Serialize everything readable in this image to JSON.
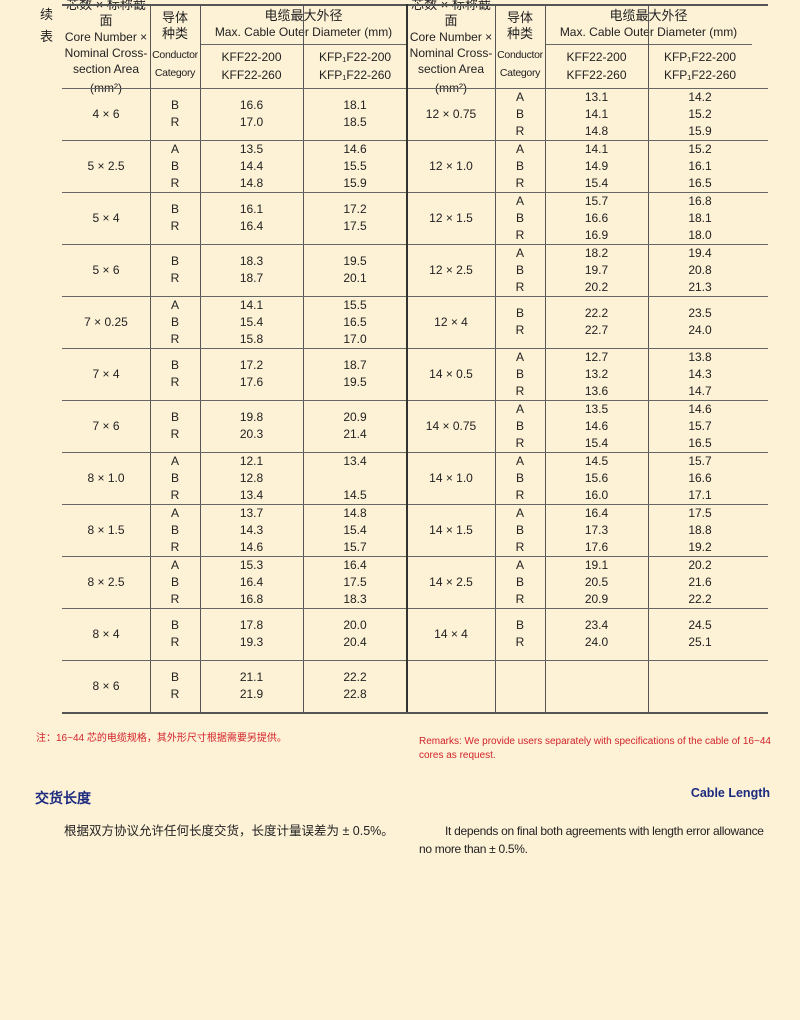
{
  "continued_label": "续表",
  "header": {
    "size_zh": "芯数 × 标称截面",
    "size_en_1": "Core Number ×",
    "size_en_2": "Nominal Cross-",
    "size_en_3": "section Area",
    "size_unit": "(mm²)",
    "cat_zh": "导体种类",
    "cat_en_1": "Conductor",
    "cat_en_2": "Category",
    "diam_zh": "电缆最大外径",
    "diam_en": "Max. Cable Outer Diameter (mm)",
    "kff_1": "KFF22-200",
    "kff_2": "KFF22-260",
    "kfp_1": "KFP₁F22-200",
    "kfp_2": "KFP₁F22-260"
  },
  "left_rows": [
    {
      "size": "4 × 6",
      "cats": [
        "B",
        "R"
      ],
      "kff": [
        "16.6",
        "17.0"
      ],
      "kfp": [
        "18.1",
        "18.5"
      ]
    },
    {
      "size": "5 × 2.5",
      "cats": [
        "A",
        "B",
        "R"
      ],
      "kff": [
        "13.5",
        "14.4",
        "14.8"
      ],
      "kfp": [
        "14.6",
        "15.5",
        "15.9"
      ]
    },
    {
      "size": "5 × 4",
      "cats": [
        "B",
        "R"
      ],
      "kff": [
        "16.1",
        "16.4"
      ],
      "kfp": [
        "17.2",
        "17.5"
      ]
    },
    {
      "size": "5 × 6",
      "cats": [
        "B",
        "R"
      ],
      "kff": [
        "18.3",
        "18.7"
      ],
      "kfp": [
        "19.5",
        "20.1"
      ]
    },
    {
      "size": "7 × 0.25",
      "cats": [
        "A",
        "B",
        "R"
      ],
      "kff": [
        "14.1",
        "15.4",
        "15.8"
      ],
      "kfp": [
        "15.5",
        "16.5",
        "17.0"
      ]
    },
    {
      "size": "7 × 4",
      "cats": [
        "B",
        "R"
      ],
      "kff": [
        "17.2",
        "17.6"
      ],
      "kfp": [
        "18.7",
        "19.5"
      ]
    },
    {
      "size": "7 × 6",
      "cats": [
        "B",
        "R"
      ],
      "kff": [
        "19.8",
        "20.3"
      ],
      "kfp": [
        "20.9",
        "21.4"
      ]
    },
    {
      "size": "8 × 1.0",
      "cats": [
        "A",
        "B",
        "R"
      ],
      "kff": [
        "12.1",
        "12.8",
        "13.4"
      ],
      "kfp": [
        "13.4",
        "",
        "14.5"
      ]
    },
    {
      "size": "8 × 1.5",
      "cats": [
        "A",
        "B",
        "R"
      ],
      "kff": [
        "13.7",
        "14.3",
        "14.6"
      ],
      "kfp": [
        "14.8",
        "15.4",
        "15.7"
      ]
    },
    {
      "size": "8 × 2.5",
      "cats": [
        "A",
        "B",
        "R"
      ],
      "kff": [
        "15.3",
        "16.4",
        "16.8"
      ],
      "kfp": [
        "16.4",
        "17.5",
        "18.3"
      ]
    },
    {
      "size": "8 × 4",
      "cats": [
        "B",
        "R"
      ],
      "kff": [
        "17.8",
        "19.3"
      ],
      "kfp": [
        "20.0",
        "20.4"
      ]
    },
    {
      "size": "8 × 6",
      "cats": [
        "B",
        "R"
      ],
      "kff": [
        "21.1",
        "21.9"
      ],
      "kfp": [
        "22.2",
        "22.8"
      ]
    }
  ],
  "right_rows": [
    {
      "size": "12 × 0.75",
      "cats": [
        "A",
        "B",
        "R"
      ],
      "kff": [
        "13.1",
        "14.1",
        "14.8"
      ],
      "kfp": [
        "14.2",
        "15.2",
        "15.9"
      ]
    },
    {
      "size": "12 × 1.0",
      "cats": [
        "A",
        "B",
        "R"
      ],
      "kff": [
        "14.1",
        "14.9",
        "15.4"
      ],
      "kfp": [
        "15.2",
        "16.1",
        "16.5"
      ]
    },
    {
      "size": "12 × 1.5",
      "cats": [
        "A",
        "B",
        "R"
      ],
      "kff": [
        "15.7",
        "16.6",
        "16.9"
      ],
      "kfp": [
        "16.8",
        "18.1",
        "18.0"
      ]
    },
    {
      "size": "12 × 2.5",
      "cats": [
        "A",
        "B",
        "R"
      ],
      "kff": [
        "18.2",
        "19.7",
        "20.2"
      ],
      "kfp": [
        "19.4",
        "20.8",
        "21.3"
      ]
    },
    {
      "size": "12 × 4",
      "cats": [
        "B",
        "R"
      ],
      "kff": [
        "22.2",
        "22.7"
      ],
      "kfp": [
        "23.5",
        "24.0"
      ]
    },
    {
      "size": "14 × 0.5",
      "cats": [
        "A",
        "B",
        "R"
      ],
      "kff": [
        "12.7",
        "13.2",
        "13.6"
      ],
      "kfp": [
        "13.8",
        "14.3",
        "14.7"
      ]
    },
    {
      "size": "14 × 0.75",
      "cats": [
        "A",
        "B",
        "R"
      ],
      "kff": [
        "13.5",
        "14.6",
        "15.4"
      ],
      "kfp": [
        "14.6",
        "15.7",
        "16.5"
      ]
    },
    {
      "size": "14 × 1.0",
      "cats": [
        "A",
        "B",
        "R"
      ],
      "kff": [
        "14.5",
        "15.6",
        "16.0"
      ],
      "kfp": [
        "15.7",
        "16.6",
        "17.1"
      ]
    },
    {
      "size": "14 × 1.5",
      "cats": [
        "A",
        "B",
        "R"
      ],
      "kff": [
        "16.4",
        "17.3",
        "17.6"
      ],
      "kfp": [
        "17.5",
        "18.8",
        "19.2"
      ]
    },
    {
      "size": "14 × 2.5",
      "cats": [
        "A",
        "B",
        "R"
      ],
      "kff": [
        "19.1",
        "20.5",
        "20.9"
      ],
      "kfp": [
        "20.2",
        "21.6",
        "22.2"
      ]
    },
    {
      "size": "14 × 4",
      "cats": [
        "B",
        "R"
      ],
      "kff": [
        "23.4",
        "24.0"
      ],
      "kfp": [
        "24.5",
        "25.1"
      ]
    },
    {
      "size": "",
      "cats": [],
      "kff": [],
      "kfp": []
    }
  ],
  "notes": {
    "zh": "注：16~44 芯的电缆规格，其外形尺寸根据需要另提供。",
    "en": "Remarks: We  provide users separately with specifications of the cable of 16~44  cores as request."
  },
  "cable_length": {
    "title_zh": "交货长度",
    "title_en": "Cable Length",
    "body_zh": "根据双方协议允许任何长度交货，长度计量误差为 ± 0.5%。",
    "body_en": "It depends on final both agreements with length error allowance no more than ± 0.5%."
  },
  "colors": {
    "background": "#fdf1d6",
    "remark_red": "#d2232a",
    "heading_navy": "#1c2a80"
  }
}
